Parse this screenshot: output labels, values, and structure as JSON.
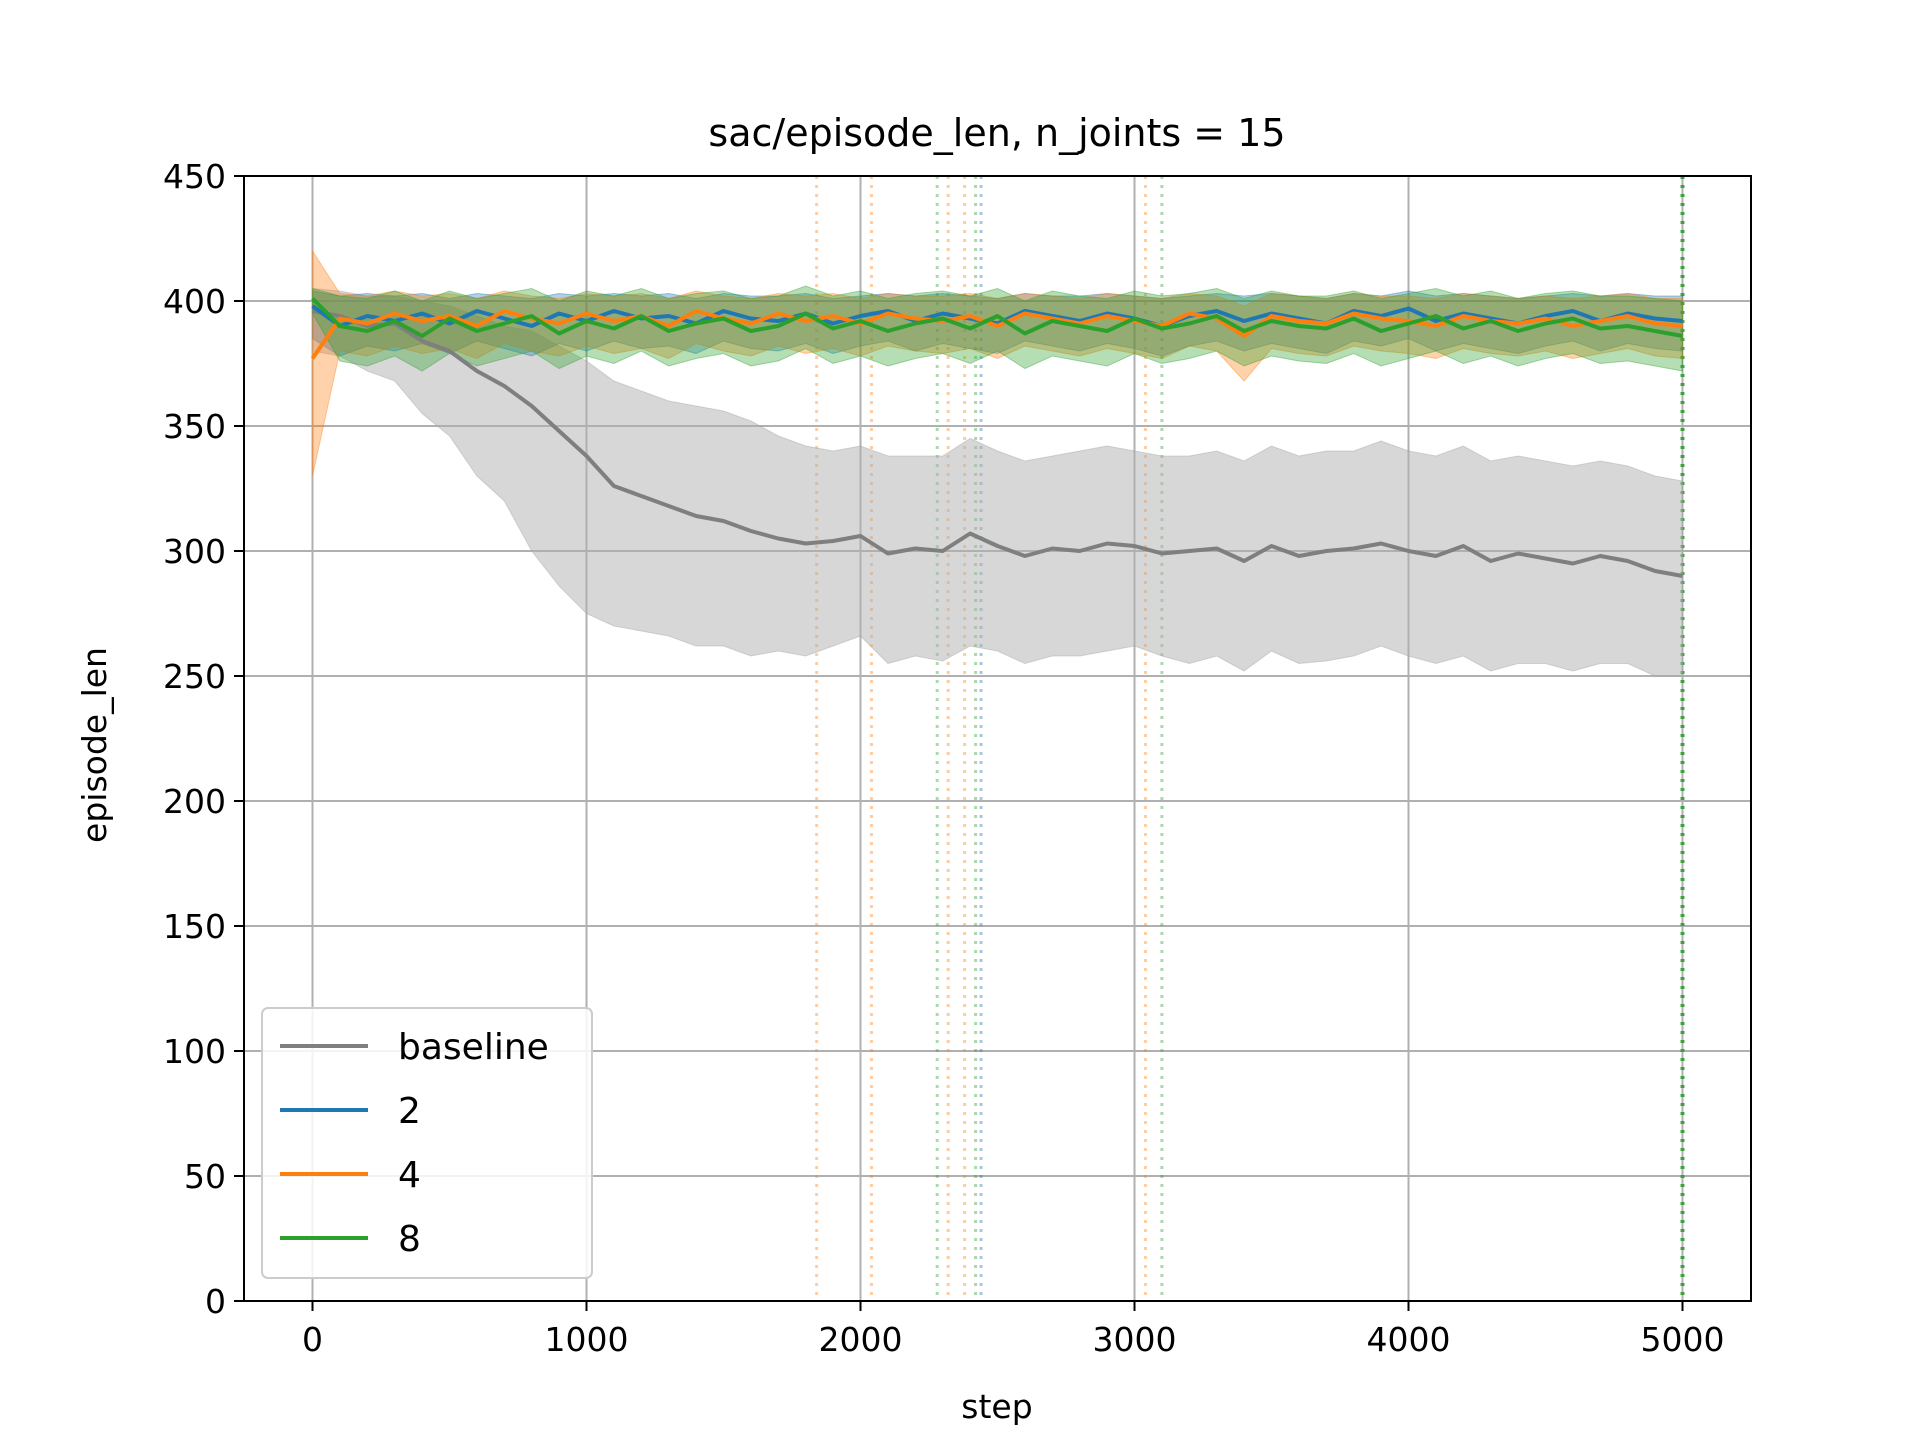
{
  "chart_data": {
    "type": "line",
    "title": "sac/episode_len, n_joints = 15",
    "xlabel": "step",
    "ylabel": "episode_len",
    "xlim": [
      -250,
      5250
    ],
    "ylim": [
      0,
      450
    ],
    "xticks": [
      0,
      1000,
      2000,
      3000,
      4000,
      5000
    ],
    "yticks": [
      0,
      50,
      100,
      150,
      200,
      250,
      300,
      350,
      400,
      450
    ],
    "grid": true,
    "legend_position": "lower-left",
    "series": [
      {
        "name": "baseline",
        "color": "#7f7f7f",
        "x": [
          0,
          100,
          200,
          300,
          400,
          500,
          600,
          700,
          800,
          900,
          1000,
          1100,
          1200,
          1300,
          1400,
          1500,
          1600,
          1700,
          1800,
          1900,
          2000,
          2100,
          2200,
          2300,
          2400,
          2500,
          2600,
          2700,
          2800,
          2900,
          3000,
          3100,
          3200,
          3300,
          3400,
          3500,
          3600,
          3700,
          3800,
          3900,
          4000,
          4100,
          4200,
          4300,
          4400,
          4500,
          4600,
          4700,
          4800,
          4900,
          5000
        ],
        "values": [
          396,
          394,
          390,
          391,
          384,
          380,
          372,
          366,
          358,
          348,
          338,
          326,
          322,
          318,
          314,
          312,
          308,
          305,
          303,
          304,
          306,
          299,
          301,
          300,
          307,
          302,
          298,
          301,
          300,
          303,
          302,
          299,
          300,
          301,
          296,
          302,
          298,
          300,
          301,
          303,
          300,
          298,
          302,
          296,
          299,
          297,
          295,
          298,
          296,
          292,
          290
        ],
        "band_low": [
          380,
          378,
          372,
          368,
          355,
          346,
          330,
          320,
          300,
          286,
          275,
          270,
          268,
          266,
          262,
          262,
          258,
          260,
          258,
          262,
          266,
          255,
          258,
          256,
          262,
          260,
          255,
          258,
          258,
          260,
          262,
          258,
          255,
          258,
          252,
          260,
          255,
          256,
          258,
          262,
          258,
          255,
          258,
          252,
          255,
          255,
          252,
          255,
          255,
          250,
          250
        ],
        "band_high": [
          405,
          404,
          402,
          402,
          400,
          398,
          394,
          390,
          388,
          382,
          376,
          368,
          364,
          360,
          358,
          356,
          352,
          346,
          342,
          340,
          342,
          338,
          338,
          338,
          345,
          340,
          336,
          338,
          340,
          342,
          340,
          338,
          338,
          340,
          336,
          342,
          338,
          340,
          340,
          344,
          340,
          338,
          342,
          336,
          338,
          336,
          334,
          336,
          334,
          330,
          328
        ]
      },
      {
        "name": "2",
        "color": "#1f77b4",
        "x": [
          0,
          100,
          200,
          300,
          400,
          500,
          600,
          700,
          800,
          900,
          1000,
          1100,
          1200,
          1300,
          1400,
          1500,
          1600,
          1700,
          1800,
          1900,
          2000,
          2100,
          2200,
          2300,
          2400,
          2500,
          2600,
          2700,
          2800,
          2900,
          3000,
          3100,
          3200,
          3300,
          3400,
          3500,
          3600,
          3700,
          3800,
          3900,
          4000,
          4100,
          4200,
          4300,
          4400,
          4500,
          4600,
          4700,
          4800,
          4900,
          5000
        ],
        "values": [
          398,
          390,
          394,
          392,
          395,
          391,
          396,
          393,
          390,
          395,
          392,
          396,
          393,
          394,
          391,
          396,
          393,
          392,
          395,
          391,
          394,
          396,
          392,
          395,
          393,
          391,
          396,
          394,
          392,
          395,
          393,
          390,
          394,
          396,
          392,
          395,
          393,
          391,
          396,
          394,
          397,
          392,
          395,
          393,
          391,
          394,
          396,
          392,
          395,
          393,
          392
        ],
        "band_low": [
          385,
          378,
          382,
          380,
          383,
          379,
          384,
          381,
          378,
          383,
          380,
          384,
          381,
          382,
          379,
          384,
          381,
          380,
          383,
          379,
          382,
          384,
          380,
          383,
          381,
          379,
          384,
          382,
          380,
          383,
          381,
          378,
          382,
          384,
          380,
          383,
          381,
          379,
          384,
          382,
          385,
          380,
          383,
          381,
          379,
          382,
          384,
          380,
          383,
          381,
          380
        ],
        "band_high": [
          404,
          402,
          403,
          402,
          403,
          401,
          403,
          402,
          401,
          403,
          402,
          403,
          402,
          403,
          401,
          403,
          402,
          402,
          403,
          401,
          402,
          403,
          402,
          403,
          402,
          401,
          403,
          402,
          402,
          403,
          402,
          401,
          402,
          403,
          402,
          403,
          402,
          401,
          403,
          402,
          404,
          402,
          403,
          402,
          401,
          402,
          403,
          402,
          403,
          402,
          402
        ]
      },
      {
        "name": "4",
        "color": "#ff7f0e",
        "x": [
          0,
          100,
          200,
          300,
          400,
          500,
          600,
          700,
          800,
          900,
          1000,
          1100,
          1200,
          1300,
          1400,
          1500,
          1600,
          1700,
          1800,
          1900,
          2000,
          2100,
          2200,
          2300,
          2400,
          2500,
          2600,
          2700,
          2800,
          2900,
          3000,
          3100,
          3200,
          3300,
          3400,
          3500,
          3600,
          3700,
          3800,
          3900,
          4000,
          4100,
          4200,
          4300,
          4400,
          4500,
          4600,
          4700,
          4800,
          4900,
          5000
        ],
        "values": [
          377,
          393,
          391,
          395,
          392,
          394,
          390,
          396,
          393,
          391,
          395,
          392,
          394,
          390,
          396,
          393,
          391,
          395,
          392,
          394,
          391,
          395,
          393,
          392,
          394,
          390,
          395,
          393,
          391,
          394,
          392,
          390,
          395,
          393,
          386,
          394,
          392,
          391,
          395,
          393,
          392,
          390,
          394,
          392,
          391,
          393,
          390,
          392,
          394,
          391,
          390
        ],
        "band_low": [
          330,
          380,
          378,
          382,
          379,
          381,
          377,
          383,
          380,
          378,
          382,
          379,
          381,
          377,
          383,
          380,
          378,
          382,
          379,
          381,
          378,
          382,
          380,
          379,
          381,
          377,
          382,
          380,
          378,
          381,
          379,
          377,
          382,
          380,
          368,
          381,
          379,
          378,
          382,
          380,
          379,
          377,
          381,
          379,
          378,
          380,
          377,
          379,
          381,
          378,
          377
        ],
        "band_high": [
          420,
          403,
          402,
          404,
          402,
          403,
          401,
          404,
          402,
          401,
          403,
          402,
          403,
          401,
          404,
          402,
          401,
          403,
          402,
          403,
          401,
          403,
          402,
          402,
          403,
          401,
          403,
          402,
          401,
          403,
          402,
          401,
          403,
          402,
          398,
          403,
          402,
          401,
          403,
          402,
          402,
          401,
          403,
          402,
          401,
          402,
          401,
          402,
          403,
          401,
          401
        ]
      },
      {
        "name": "8",
        "color": "#2ca02c",
        "x": [
          0,
          100,
          200,
          300,
          400,
          500,
          600,
          700,
          800,
          900,
          1000,
          1100,
          1200,
          1300,
          1400,
          1500,
          1600,
          1700,
          1800,
          1900,
          2000,
          2100,
          2200,
          2300,
          2400,
          2500,
          2600,
          2700,
          2800,
          2900,
          3000,
          3100,
          3200,
          3300,
          3400,
          3500,
          3600,
          3700,
          3800,
          3900,
          4000,
          4100,
          4200,
          4300,
          4400,
          4500,
          4600,
          4700,
          4800,
          4900,
          5000
        ],
        "values": [
          401,
          390,
          388,
          392,
          386,
          393,
          388,
          391,
          394,
          387,
          392,
          389,
          394,
          388,
          391,
          393,
          388,
          390,
          395,
          389,
          392,
          388,
          391,
          393,
          389,
          394,
          387,
          392,
          390,
          388,
          393,
          389,
          391,
          394,
          388,
          392,
          390,
          389,
          393,
          388,
          391,
          394,
          389,
          392,
          388,
          391,
          393,
          389,
          390,
          388,
          386
        ],
        "band_low": [
          395,
          376,
          374,
          378,
          372,
          379,
          374,
          377,
          380,
          373,
          378,
          375,
          380,
          374,
          377,
          379,
          374,
          376,
          381,
          375,
          378,
          374,
          377,
          379,
          375,
          380,
          373,
          378,
          376,
          374,
          379,
          375,
          377,
          380,
          374,
          378,
          376,
          375,
          379,
          374,
          377,
          380,
          375,
          378,
          374,
          377,
          379,
          375,
          376,
          374,
          372
        ],
        "band_high": [
          405,
          402,
          401,
          404,
          400,
          404,
          401,
          403,
          405,
          400,
          404,
          402,
          405,
          401,
          403,
          404,
          401,
          402,
          406,
          402,
          404,
          401,
          403,
          404,
          402,
          405,
          400,
          404,
          402,
          401,
          404,
          402,
          403,
          405,
          401,
          404,
          402,
          402,
          404,
          401,
          403,
          405,
          402,
          404,
          401,
          403,
          404,
          402,
          402,
          401,
          400
        ]
      }
    ],
    "vlines": [
      {
        "x": 1840,
        "color": "#ff7f0e"
      },
      {
        "x": 2040,
        "color": "#ff7f0e"
      },
      {
        "x": 2280,
        "color": "#2ca02c"
      },
      {
        "x": 2320,
        "color": "#ff7f0e"
      },
      {
        "x": 2380,
        "color": "#ff7f0e"
      },
      {
        "x": 2420,
        "color": "#2ca02c"
      },
      {
        "x": 2440,
        "color": "#1f77b4"
      },
      {
        "x": 3040,
        "color": "#ff7f0e"
      },
      {
        "x": 3100,
        "color": "#2ca02c"
      },
      {
        "x": 5000,
        "color": "#2ca02c",
        "strong": true
      }
    ]
  }
}
